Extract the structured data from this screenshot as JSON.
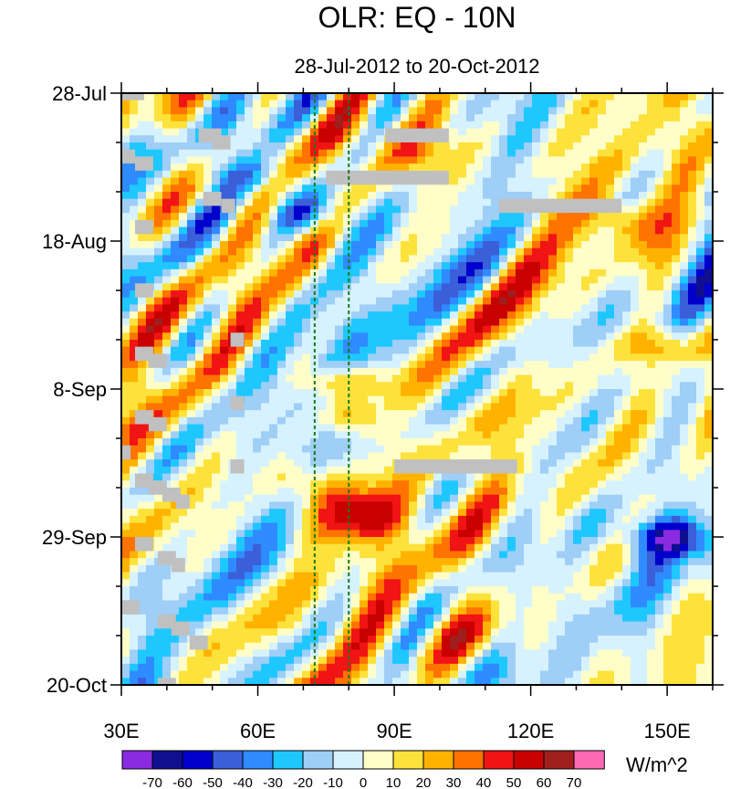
{
  "chart_data": {
    "type": "heatmap",
    "title": "OLR: EQ - 10N",
    "subtitle": "28-Jul-2012 to 20-Oct-2012",
    "units": "W/m^2",
    "x_axis": {
      "range": [
        30,
        160
      ],
      "major_ticks": [
        30,
        60,
        90,
        120,
        150
      ],
      "tick_labels": [
        "30E",
        "60E",
        "90E",
        "120E",
        "150E"
      ],
      "minor_step": 10
    },
    "y_axis": {
      "range_days": [
        0,
        84
      ],
      "major_ticks": [
        0,
        21,
        42,
        63,
        84
      ],
      "tick_labels": [
        "28-Jul",
        "18-Aug",
        "8-Sep",
        "29-Sep",
        "20-Oct"
      ],
      "minor_step_days": 7,
      "direction": "time increases downward"
    },
    "reference_lines": [
      {
        "lon": 72.5,
        "style": "dashed",
        "color": "#1a7a1a"
      },
      {
        "lon": 80,
        "style": "dashed",
        "color": "#1a7a1a"
      }
    ],
    "colorbar": {
      "labels": [
        "-70",
        "-60",
        "-50",
        "-40",
        "-30",
        "-20",
        "-10",
        "0",
        "10",
        "20",
        "30",
        "40",
        "50",
        "60",
        "70"
      ],
      "colors": [
        "#8a2be2",
        "#0f0f8f",
        "#0000cd",
        "#3a5fd8",
        "#2f8bff",
        "#1ec8ff",
        "#9fcef6",
        "#d6f2ff",
        "#fffdc8",
        "#fde23c",
        "#ffb300",
        "#ff7300",
        "#f01414",
        "#c80000",
        "#a01e1e",
        "#ff69b4"
      ]
    },
    "missing_data_color": "#c0c0c0",
    "missing_data_blocks": [
      {
        "lon": [
          30,
          35
        ],
        "day": [
          0,
          1
        ]
      },
      {
        "lon": [
          47,
          52
        ],
        "day": [
          5,
          7
        ]
      },
      {
        "lon": [
          50,
          54
        ],
        "day": [
          6,
          8
        ]
      },
      {
        "lon": [
          88,
          102
        ],
        "day": [
          5,
          7
        ]
      },
      {
        "lon": [
          30,
          33
        ],
        "day": [
          8,
          10
        ]
      },
      {
        "lon": [
          33,
          37
        ],
        "day": [
          9,
          11
        ]
      },
      {
        "lon": [
          75,
          102
        ],
        "day": [
          11,
          13
        ]
      },
      {
        "lon": [
          48,
          52
        ],
        "day": [
          14,
          16
        ]
      },
      {
        "lon": [
          52,
          55
        ],
        "day": [
          15,
          17
        ]
      },
      {
        "lon": [
          113,
          140
        ],
        "day": [
          15,
          17
        ]
      },
      {
        "lon": [
          33,
          37
        ],
        "day": [
          18,
          20
        ]
      },
      {
        "lon": [
          33,
          37
        ],
        "day": [
          27,
          29
        ]
      },
      {
        "lon": [
          54,
          57
        ],
        "day": [
          34,
          36
        ]
      },
      {
        "lon": [
          33,
          37
        ],
        "day": [
          36,
          38
        ]
      },
      {
        "lon": [
          36,
          40
        ],
        "day": [
          37,
          39
        ]
      },
      {
        "lon": [
          54,
          57
        ],
        "day": [
          43,
          45
        ]
      },
      {
        "lon": [
          33,
          37
        ],
        "day": [
          45,
          47
        ]
      },
      {
        "lon": [
          36,
          40
        ],
        "day": [
          46,
          48
        ]
      },
      {
        "lon": [
          30,
          32
        ],
        "day": [
          50,
          52
        ]
      },
      {
        "lon": [
          54,
          57
        ],
        "day": [
          52,
          54
        ]
      },
      {
        "lon": [
          90,
          117
        ],
        "day": [
          52,
          54
        ]
      },
      {
        "lon": [
          33,
          37
        ],
        "day": [
          54,
          56
        ]
      },
      {
        "lon": [
          36,
          40
        ],
        "day": [
          55,
          57
        ]
      },
      {
        "lon": [
          39,
          43
        ],
        "day": [
          56,
          58
        ]
      },
      {
        "lon": [
          42,
          45
        ],
        "day": [
          57,
          59
        ]
      },
      {
        "lon": [
          33,
          37
        ],
        "day": [
          63,
          65
        ]
      },
      {
        "lon": [
          38,
          42
        ],
        "day": [
          65,
          67
        ]
      },
      {
        "lon": [
          41,
          44
        ],
        "day": [
          66,
          68
        ]
      },
      {
        "lon": [
          30,
          34
        ],
        "day": [
          72,
          74
        ]
      },
      {
        "lon": [
          38,
          42
        ],
        "day": [
          74,
          76
        ]
      },
      {
        "lon": [
          41,
          45
        ],
        "day": [
          75,
          77
        ]
      },
      {
        "lon": [
          45,
          49
        ],
        "day": [
          77,
          79
        ]
      },
      {
        "lon": [
          38,
          42
        ],
        "day": [
          83,
          84
        ]
      }
    ]
  }
}
